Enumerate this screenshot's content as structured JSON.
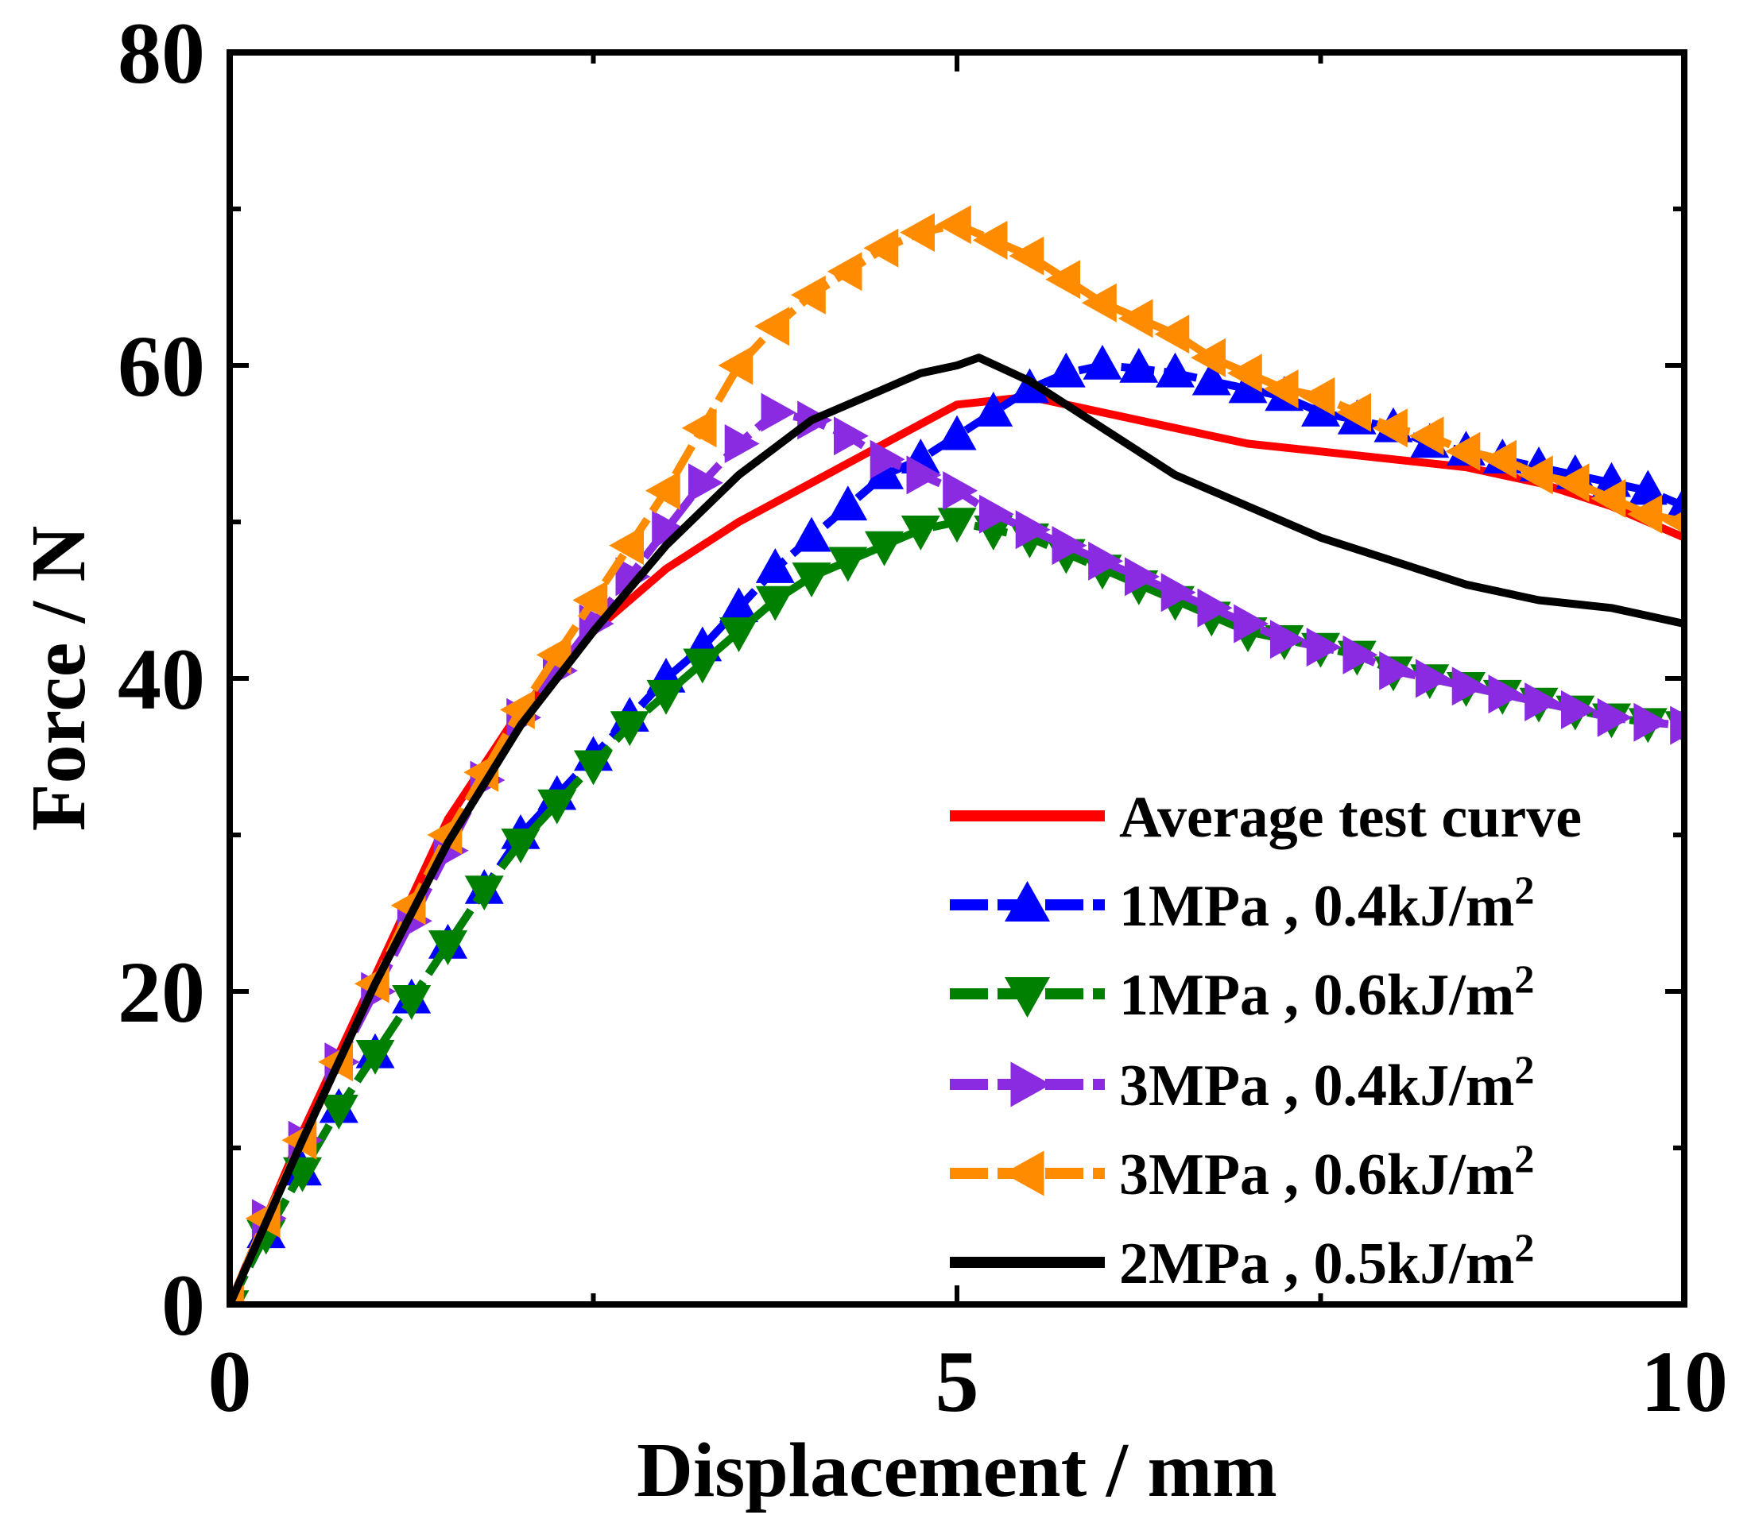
{
  "chart_data": {
    "type": "line",
    "title": "",
    "xlabel": "Displacement / mm",
    "ylabel": "Force / N",
    "xlim": [
      0,
      10
    ],
    "ylim": [
      0,
      80
    ],
    "xticks": [
      0,
      5,
      10
    ],
    "yticks": [
      0,
      20,
      40,
      60,
      80
    ],
    "xtick_labels": [
      "0",
      "5",
      "10"
    ],
    "ytick_labels": [
      "0",
      "20",
      "40",
      "60",
      "80"
    ],
    "legend_position": "bottom-right",
    "series": [
      {
        "name": "Average test curve",
        "label_main": "Average test curve",
        "label_sup": "",
        "color": "#ff0000",
        "dash": "solid",
        "marker": "none",
        "x": [
          0,
          0.5,
          1.0,
          1.5,
          2.0,
          2.5,
          3.0,
          3.5,
          4.0,
          4.5,
          5.0,
          5.5,
          6.0,
          6.5,
          7.0,
          7.5,
          8.0,
          8.5,
          9.0,
          9.5,
          10.0
        ],
        "y": [
          0,
          11,
          21,
          31,
          38,
          43,
          47,
          50,
          52.5,
          55,
          57.5,
          58,
          57,
          56,
          55,
          54.5,
          54,
          53.5,
          52.5,
          51,
          49
        ]
      },
      {
        "name": "1MPa , 0.4kJ/m2",
        "label_main": "1MPa , 0.4kJ/m",
        "label_sup": "2",
        "color": "#0000ff",
        "dash": "dash",
        "marker": "triangle-up",
        "x": [
          0,
          0.25,
          0.5,
          0.75,
          1.0,
          1.25,
          1.5,
          1.75,
          2.0,
          2.25,
          2.5,
          2.75,
          3.0,
          3.25,
          3.5,
          3.75,
          4.0,
          4.25,
          4.5,
          4.75,
          5.0,
          5.25,
          5.5,
          5.75,
          6.0,
          6.25,
          6.5,
          6.75,
          7.0,
          7.25,
          7.5,
          7.75,
          8.0,
          8.25,
          8.5,
          8.75,
          9.0,
          9.25,
          9.5,
          9.75,
          10.0
        ],
        "y": [
          0,
          4.5,
          8.5,
          12.5,
          16,
          19.5,
          23,
          26.5,
          30,
          32.5,
          35,
          37.5,
          40,
          42,
          44.5,
          47,
          49,
          51,
          53,
          54,
          55.5,
          57,
          58.5,
          59.5,
          60,
          59.8,
          59.5,
          59,
          58.5,
          58,
          57,
          56.5,
          56,
          55,
          54.5,
          54,
          53.5,
          53,
          52.5,
          52,
          51
        ]
      },
      {
        "name": "1MPa , 0.6kJ/m2",
        "label_main": "1MPa , 0.6kJ/m",
        "label_sup": "2",
        "color": "#008000",
        "dash": "dash",
        "marker": "triangle-down",
        "x": [
          0,
          0.25,
          0.5,
          0.75,
          1.0,
          1.25,
          1.5,
          1.75,
          2.0,
          2.25,
          2.5,
          2.75,
          3.0,
          3.25,
          3.5,
          3.75,
          4.0,
          4.25,
          4.5,
          4.75,
          5.0,
          5.25,
          5.5,
          5.75,
          6.0,
          6.25,
          6.5,
          6.75,
          7.0,
          7.25,
          7.5,
          7.75,
          8.0,
          8.25,
          8.5,
          8.75,
          9.0,
          9.25,
          9.5,
          9.75,
          10.0
        ],
        "y": [
          0,
          4.5,
          8.5,
          12.5,
          16,
          19.5,
          23,
          26.5,
          29.5,
          32,
          34.5,
          37,
          39,
          41,
          43,
          45,
          46.5,
          47.5,
          48.5,
          49.5,
          50,
          49.5,
          49,
          48,
          47,
          46,
          45,
          44,
          43,
          42.5,
          42,
          41.5,
          40.5,
          40,
          39.5,
          39,
          38.5,
          38,
          37.5,
          37.2,
          37
        ]
      },
      {
        "name": "3MPa , 0.4kJ/m2",
        "label_main": "3MPa , 0.4kJ/m",
        "label_sup": "2",
        "color": "#8a2be2",
        "dash": "dash",
        "marker": "triangle-right",
        "x": [
          0,
          0.25,
          0.5,
          0.75,
          1.0,
          1.25,
          1.5,
          1.75,
          2.0,
          2.25,
          2.5,
          2.75,
          3.0,
          3.25,
          3.5,
          3.75,
          4.0,
          4.25,
          4.5,
          4.75,
          5.0,
          5.25,
          5.5,
          5.75,
          6.0,
          6.25,
          6.5,
          6.75,
          7.0,
          7.25,
          7.5,
          7.75,
          8.0,
          8.25,
          8.5,
          8.75,
          9.0,
          9.25,
          9.5,
          9.75,
          10.0
        ],
        "y": [
          0,
          5.5,
          10.5,
          15.5,
          20,
          24.5,
          29,
          33.5,
          37.5,
          40.5,
          43.5,
          46.5,
          49.5,
          52.5,
          55,
          57,
          56.5,
          55.5,
          54,
          53,
          52,
          50.5,
          49.5,
          48.5,
          47.5,
          46.5,
          45.5,
          44.5,
          43.5,
          42.5,
          42,
          41.5,
          40.5,
          40,
          39.5,
          39,
          38.5,
          38,
          37.5,
          37.2,
          37
        ]
      },
      {
        "name": "3MPa , 0.6kJ/m2",
        "label_main": "3MPa , 0.6kJ/m",
        "label_sup": "2",
        "color": "#ff8c00",
        "dash": "dash",
        "marker": "triangle-left",
        "x": [
          0,
          0.25,
          0.5,
          0.75,
          1.0,
          1.25,
          1.5,
          1.75,
          2.0,
          2.25,
          2.5,
          2.75,
          3.0,
          3.25,
          3.5,
          3.75,
          4.0,
          4.25,
          4.5,
          4.75,
          5.0,
          5.25,
          5.5,
          5.75,
          6.0,
          6.25,
          6.5,
          6.75,
          7.0,
          7.25,
          7.5,
          7.75,
          8.0,
          8.25,
          8.5,
          8.75,
          9.0,
          9.25,
          9.5,
          9.75,
          10.0
        ],
        "y": [
          0,
          5.5,
          10.5,
          15.5,
          20.5,
          25.5,
          30,
          34,
          38,
          41.5,
          45,
          48.5,
          52,
          56,
          60,
          62.5,
          64.5,
          66,
          67.5,
          68.5,
          69,
          68,
          67,
          65.5,
          64,
          63,
          62,
          60.5,
          59.5,
          58.5,
          58,
          57,
          56,
          55.5,
          54.5,
          54,
          53,
          52.5,
          51.5,
          50.5,
          50
        ]
      },
      {
        "name": "2MPa , 0.5kJ/m2",
        "label_main": "2MPa , 0.5kJ/m",
        "label_sup": "2",
        "color": "#000000",
        "dash": "solid",
        "marker": "none",
        "x": [
          0,
          0.5,
          1.0,
          1.5,
          2.0,
          2.5,
          3.0,
          3.5,
          4.0,
          4.5,
          4.75,
          5.0,
          5.15,
          5.5,
          6.0,
          6.5,
          7.0,
          7.5,
          8.0,
          8.5,
          9.0,
          9.5,
          10.0
        ],
        "y": [
          0,
          10.5,
          20.5,
          29.5,
          37,
          43,
          48.5,
          53,
          56.5,
          58.5,
          59.5,
          60,
          60.5,
          59,
          56,
          53,
          51,
          49,
          47.5,
          46,
          45,
          44.5,
          43.5
        ]
      }
    ]
  }
}
